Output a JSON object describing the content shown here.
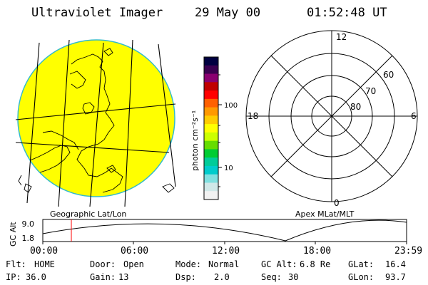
{
  "header": {
    "instrument": "Ultraviolet Imager",
    "date": "29 May 00",
    "time": "01:52:48 UT"
  },
  "colorbar": {
    "unit_label": "photon cm⁻²s⁻¹",
    "ticks": [
      "100",
      "10"
    ],
    "colors": [
      "#000040",
      "#3a0050",
      "#8a0070",
      "#c00000",
      "#ff0000",
      "#ff6000",
      "#ff9900",
      "#ffcc00",
      "#ffff00",
      "#ccff00",
      "#66dd00",
      "#00cc33",
      "#00cc99",
      "#00cccc",
      "#80e0e0",
      "#d0e8e8",
      "#f2f2f2"
    ]
  },
  "image_panel": {
    "fill_color": "#ffff00",
    "caption": "Geographic Lat/Lon"
  },
  "polar_plot": {
    "hour_labels": {
      "top": "12",
      "left": "18",
      "right": "6",
      "bottom": "0"
    },
    "lat_labels": [
      "60",
      "70",
      "80"
    ],
    "caption": "Apex MLat/MLT"
  },
  "altitude_plot": {
    "ylabel": "GC Alt",
    "yticks": [
      "9.0",
      "1.8"
    ],
    "xticks": [
      "00:00",
      "06:00",
      "12:00",
      "18:00",
      "23:59"
    ],
    "marker_color": "#ff0000"
  },
  "status": {
    "row1": [
      {
        "label": "Flt:",
        "value": "HOME"
      },
      {
        "label": "Door:",
        "value": "Open"
      },
      {
        "label": "Mode:",
        "value": "Normal"
      },
      {
        "label": "GC Alt:",
        "value": "6.8 Re"
      },
      {
        "label": "GLat:",
        "value": "16.4"
      }
    ],
    "row2": [
      {
        "label": "IP:",
        "value": "36.0"
      },
      {
        "label": "Gain:",
        "value": "13"
      },
      {
        "label": "Dsp:",
        "value": "2.0"
      },
      {
        "label": "Seq:",
        "value": "30"
      },
      {
        "label": "GLon:",
        "value": "93.7"
      }
    ]
  }
}
